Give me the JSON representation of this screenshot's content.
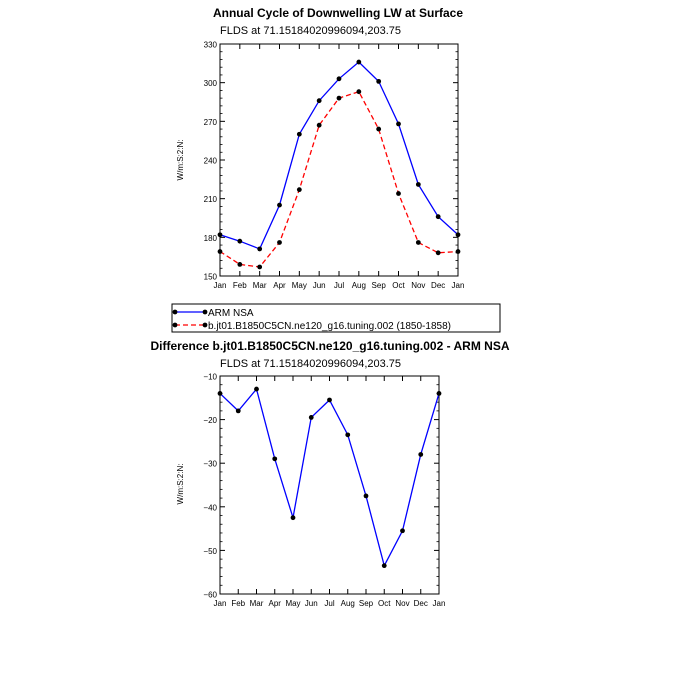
{
  "chart_data": [
    {
      "type": "line",
      "title": "Annual Cycle of Downwelling LW at Surface",
      "subtitle": "FLDS at 71.15184020996094,203.75",
      "ylabel": "W/m:S:2:N:",
      "xlabel": "",
      "categories": [
        "Jan",
        "Feb",
        "Mar",
        "Apr",
        "May",
        "Jun",
        "Jul",
        "Aug",
        "Sep",
        "Oct",
        "Nov",
        "Dec",
        "Jan"
      ],
      "ylim": [
        150,
        330
      ],
      "yticks": [
        150,
        180,
        210,
        240,
        270,
        300,
        330
      ],
      "series": [
        {
          "name": "ARM NSA",
          "color": "#0000ff",
          "dash": "solid",
          "values": [
            182,
            177,
            171,
            205,
            260,
            286,
            303,
            316,
            301,
            268,
            221,
            196,
            182
          ]
        },
        {
          "name": "b.jt01.B1850C5CN.ne120_g16.tuning.002 (1850-1858)",
          "color": "#ff0000",
          "dash": "dashed",
          "values": [
            169,
            159,
            157,
            176,
            217,
            267,
            288,
            293,
            264,
            214,
            176,
            168,
            169
          ]
        }
      ]
    },
    {
      "type": "line",
      "title": "Difference b.jt01.B1850C5CN.ne120_g16.tuning.002 - ARM NSA",
      "subtitle": "FLDS at 71.15184020996094,203.75",
      "ylabel": "W/m:S:2:N:",
      "xlabel": "",
      "categories": [
        "Jan",
        "Feb",
        "Mar",
        "Apr",
        "May",
        "Jun",
        "Jul",
        "Aug",
        "Sep",
        "Oct",
        "Nov",
        "Dec",
        "Jan"
      ],
      "ylim": [
        -60,
        -10
      ],
      "yticks": [
        -60,
        -50,
        -40,
        -30,
        -20,
        -10
      ],
      "series": [
        {
          "color": "#0000ff",
          "dash": "solid",
          "values": [
            -14,
            -18,
            -13,
            -29,
            -42.5,
            -19.5,
            -15.5,
            -23.5,
            -37.5,
            -53.5,
            -45.5,
            -28,
            -14
          ]
        }
      ]
    }
  ]
}
